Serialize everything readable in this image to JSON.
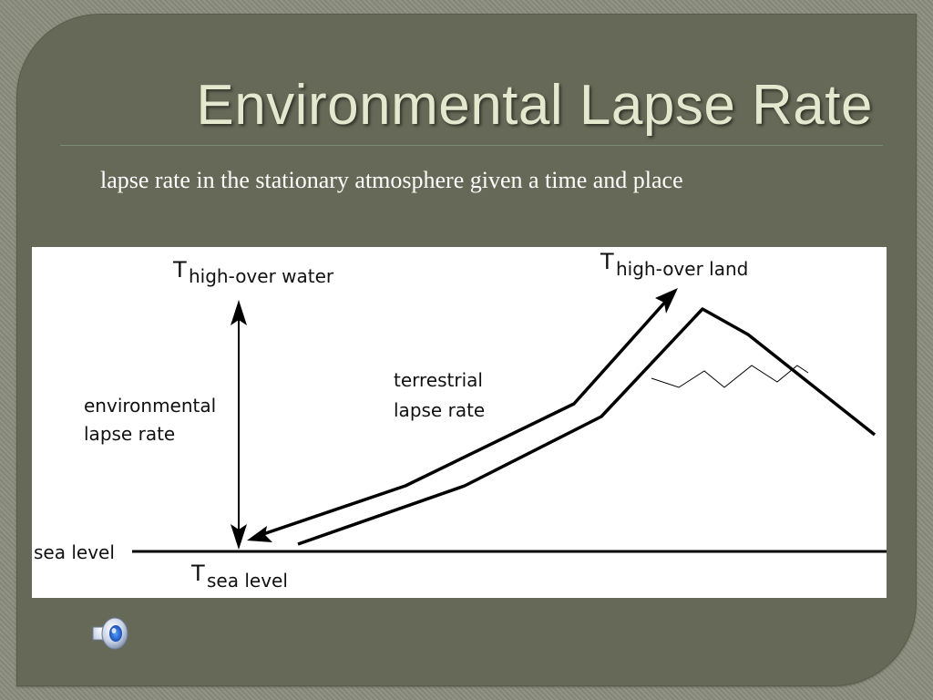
{
  "slide": {
    "title": "Environmental Lapse Rate",
    "subtitle": "lapse rate in the stationary atmosphere given a time and place"
  },
  "diagram": {
    "t_high_water": {
      "symbol": "T",
      "sub": "high-over water"
    },
    "t_high_land": {
      "symbol": "T",
      "sub": "high-over land"
    },
    "t_sea_level": {
      "symbol": "T",
      "sub": "sea level"
    },
    "env_rate_line1": "environmental",
    "env_rate_line2": "lapse rate",
    "terr_rate_line1": "terrestrial",
    "terr_rate_line2": "lapse rate",
    "sea_level": "sea level"
  },
  "icons": {
    "audio": "speaker-icon"
  },
  "colors": {
    "slide_bg": "#666957",
    "title_text": "#e4e8ce",
    "subtitle_text": "#ffffff",
    "panel_bg": "#ffffff",
    "line": "#000000"
  }
}
